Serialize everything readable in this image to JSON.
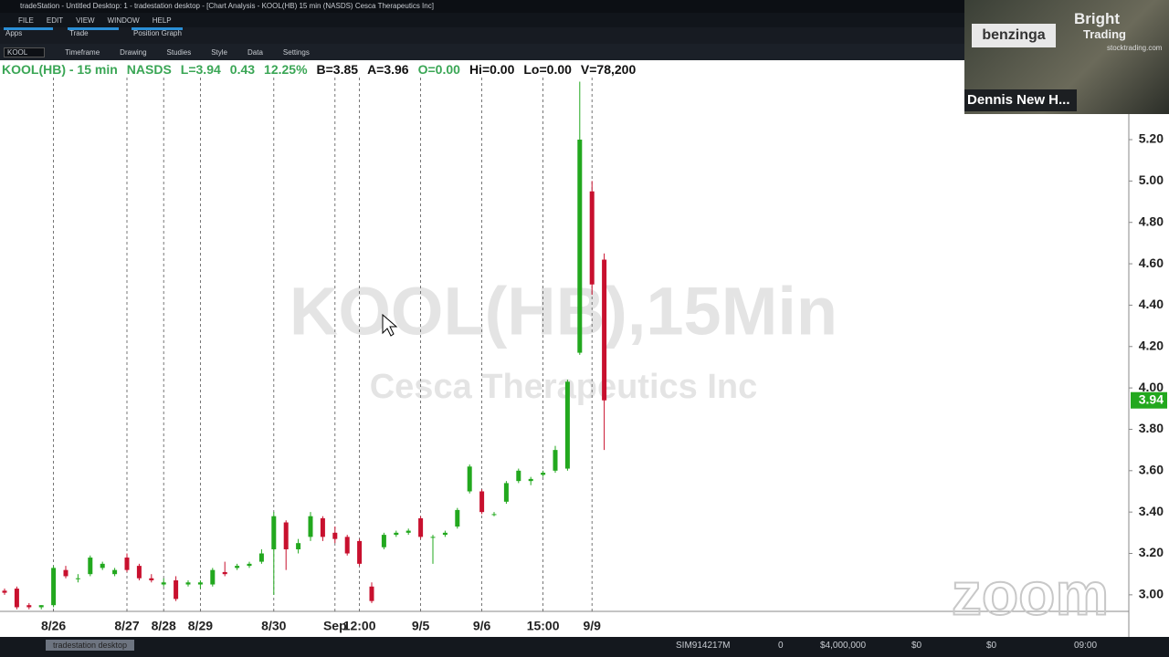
{
  "title_bar": "tradeStation - Untitled Desktop: 1 - tradestation desktop - [Chart Analysis - KOOL(HB) 15 min (NASDS) Cesca Therapeutics Inc]",
  "menu": [
    "FILE",
    "EDIT",
    "VIEW",
    "WINDOW",
    "HELP"
  ],
  "tabs": [
    "Apps",
    "Trade",
    "Position Graph"
  ],
  "toolbar": {
    "symbol": "KOOL",
    "buttons": [
      "Timeframe",
      "Drawing",
      "Studies",
      "Style",
      "Data",
      "Settings"
    ]
  },
  "webcam": {
    "logo": "benzinga",
    "brand_top": "Bright",
    "brand_bottom": "Trading",
    "site": "stocktrading.com",
    "name": "Dennis New H..."
  },
  "zoom": "zoom",
  "status_bar": {
    "tab": "tradestation desktop",
    "account": "SIM914217M",
    "fields": [
      "0",
      "$4,000,000",
      "$0",
      "$0"
    ],
    "time": "09:00"
  },
  "chart_data": {
    "type": "candlestick",
    "header": [
      {
        "text": "KOOL(HB) - 15 min",
        "color": "#3aa655"
      },
      {
        "text": "NASDS",
        "color": "#3aa655"
      },
      {
        "text": "L=3.94",
        "color": "#3aa655"
      },
      {
        "text": "0.43",
        "color": "#3aa655"
      },
      {
        "text": "12.25%",
        "color": "#3aa655"
      },
      {
        "text": "B=3.85",
        "color": "#111111"
      },
      {
        "text": "A=3.96",
        "color": "#111111"
      },
      {
        "text": "O=0.00",
        "color": "#3aa655"
      },
      {
        "text": "Hi=0.00",
        "color": "#111111"
      },
      {
        "text": "Lo=0.00",
        "color": "#111111"
      },
      {
        "text": "V=78,200",
        "color": "#111111"
      }
    ],
    "watermark": [
      "KOOL(HB),15Min",
      "Cesca Therapeutics Inc"
    ],
    "categories": [
      null,
      null,
      null,
      null,
      "8/26",
      null,
      null,
      null,
      null,
      null,
      "8/27",
      null,
      null,
      "8/28",
      null,
      null,
      "8/29",
      null,
      null,
      null,
      null,
      null,
      "8/30",
      null,
      null,
      null,
      null,
      "Sep",
      null,
      "12:00",
      null,
      null,
      null,
      null,
      "9/5",
      null,
      null,
      null,
      null,
      "9/6",
      null,
      null,
      null,
      null,
      "15:00",
      null,
      null,
      null,
      "9/9",
      null
    ],
    "open": [
      3.02,
      3.03,
      2.95,
      2.94,
      2.95,
      3.12,
      3.08,
      3.1,
      3.13,
      3.1,
      3.18,
      3.14,
      3.08,
      3.05,
      3.07,
      3.05,
      3.05,
      3.05,
      3.11,
      3.13,
      3.14,
      3.16,
      3.22,
      3.35,
      3.22,
      3.28,
      3.37,
      3.3,
      3.28,
      3.26,
      3.04,
      3.23,
      3.29,
      3.3,
      3.37,
      3.28,
      3.29,
      3.33,
      3.5,
      3.5,
      3.39,
      3.45,
      3.55,
      3.55,
      3.58,
      3.6,
      3.61,
      4.17,
      4.95,
      4.62
    ],
    "high": [
      3.03,
      3.04,
      2.96,
      2.95,
      3.14,
      3.14,
      3.1,
      3.19,
      3.16,
      3.13,
      3.2,
      3.15,
      3.1,
      3.08,
      3.09,
      3.07,
      3.07,
      3.13,
      3.16,
      3.15,
      3.16,
      3.22,
      3.4,
      3.36,
      3.27,
      3.4,
      3.38,
      3.33,
      3.29,
      3.27,
      3.06,
      3.3,
      3.31,
      3.32,
      3.38,
      3.29,
      3.31,
      3.42,
      3.63,
      3.51,
      3.4,
      3.55,
      3.61,
      3.57,
      3.6,
      3.72,
      4.04,
      5.48,
      5.0,
      4.65
    ],
    "low": [
      3.0,
      2.93,
      2.93,
      2.93,
      2.94,
      3.08,
      3.06,
      3.09,
      3.12,
      3.09,
      3.11,
      3.07,
      3.06,
      3.04,
      2.97,
      3.04,
      3.03,
      3.04,
      3.09,
      3.12,
      3.13,
      3.15,
      3.0,
      3.12,
      3.2,
      3.26,
      3.26,
      3.25,
      3.19,
      3.14,
      2.96,
      3.22,
      3.28,
      3.29,
      3.27,
      3.15,
      3.28,
      3.32,
      3.49,
      3.39,
      3.38,
      3.44,
      3.54,
      3.53,
      3.57,
      3.59,
      3.6,
      4.16,
      4.45,
      3.7
    ],
    "close": [
      3.01,
      2.94,
      2.94,
      2.95,
      3.13,
      3.09,
      3.08,
      3.18,
      3.15,
      3.12,
      3.12,
      3.08,
      3.07,
      3.06,
      2.98,
      3.06,
      3.06,
      3.12,
      3.1,
      3.14,
      3.15,
      3.2,
      3.38,
      3.22,
      3.25,
      3.38,
      3.28,
      3.27,
      3.2,
      3.15,
      2.97,
      3.29,
      3.3,
      3.31,
      3.28,
      3.28,
      3.3,
      3.41,
      3.62,
      3.4,
      3.39,
      3.54,
      3.6,
      3.56,
      3.59,
      3.7,
      4.03,
      5.2,
      4.5,
      3.94
    ],
    "up_color": "#22a81e",
    "down_color": "#c8102e",
    "ylim": [
      2.92,
      5.5
    ],
    "yticks": [
      {
        "value": 3.0,
        "label": "3.00"
      },
      {
        "value": 3.2,
        "label": "3.20"
      },
      {
        "value": 3.4,
        "label": "3.40"
      },
      {
        "value": 3.6,
        "label": "3.60"
      },
      {
        "value": 3.8,
        "label": "3.80"
      },
      {
        "value": 4.0,
        "label": "4.00"
      },
      {
        "value": 4.2,
        "label": "4.20"
      },
      {
        "value": 4.4,
        "label": "4.40"
      },
      {
        "value": 4.6,
        "label": "4.60"
      },
      {
        "value": 4.8,
        "label": "4.80"
      },
      {
        "value": 5.0,
        "label": "5.00"
      },
      {
        "value": 5.2,
        "label": "5.20"
      }
    ],
    "last_price": {
      "value": 3.94,
      "label": "3.94"
    },
    "grid": true
  }
}
